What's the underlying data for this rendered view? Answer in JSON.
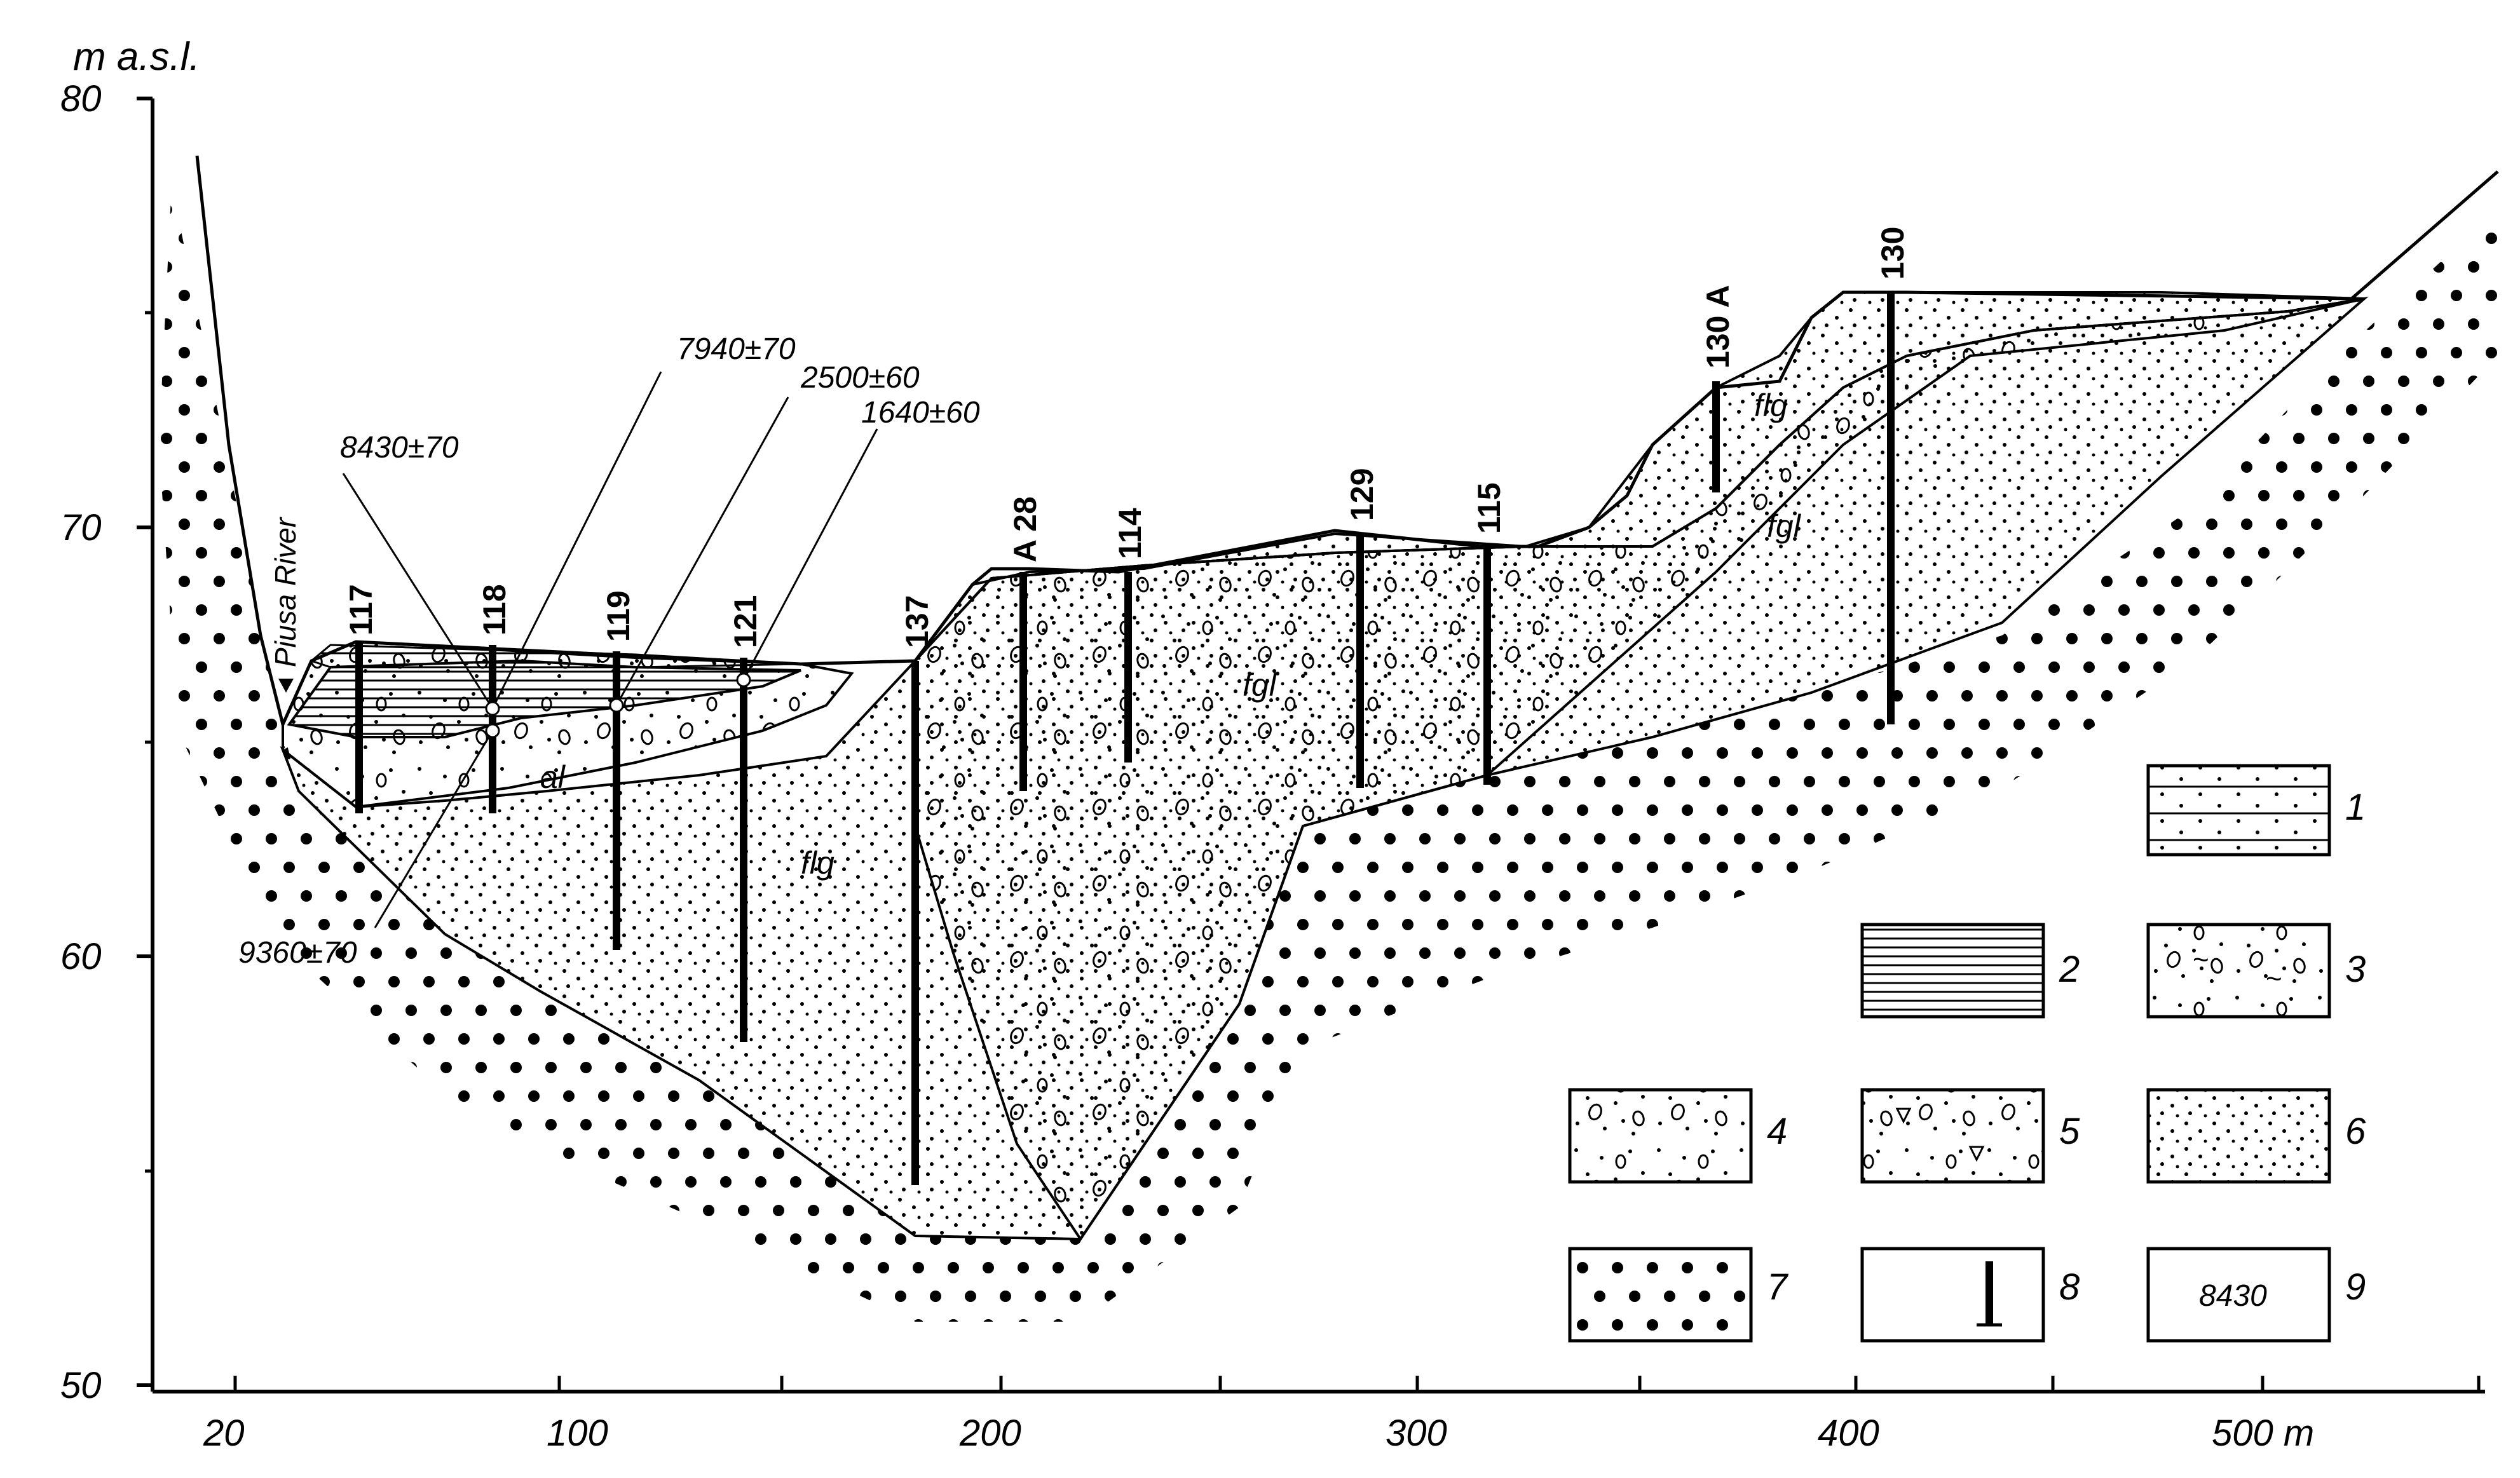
{
  "axes": {
    "y_unit": "m a.s.l.",
    "y_ticks": [
      "80",
      "70",
      "60",
      "50"
    ],
    "x_ticks": [
      "20",
      "100",
      "200",
      "300",
      "400",
      "500 m"
    ]
  },
  "river_label": "Piusa River",
  "boreholes": [
    "117",
    "118",
    "119",
    "121",
    "137",
    "A 28",
    "114",
    "129",
    "115",
    "130 A",
    "130"
  ],
  "dates": [
    "8430±70",
    "7940±70",
    "2500±60",
    "1640±60",
    "9360±70"
  ],
  "unit_labels": {
    "al": "al",
    "flg_main": "flg",
    "fgl_center": "fgl",
    "flg_upper": "flg",
    "fgl_upper": "fgl"
  },
  "legend": [
    {
      "number": "1",
      "pattern": "sand-lines"
    },
    {
      "number": "2",
      "pattern": "dense-lines"
    },
    {
      "number": "3",
      "pattern": "sand-gravel-tilde"
    },
    {
      "number": "4",
      "pattern": "sand-gravel"
    },
    {
      "number": "5",
      "pattern": "sand-gravel-triangles"
    },
    {
      "number": "6",
      "pattern": "sand"
    },
    {
      "number": "7",
      "pattern": "large-dots"
    },
    {
      "number": "8",
      "pattern": "borehole-symbol"
    },
    {
      "number": "9",
      "pattern": "date-text",
      "sample": "8430"
    }
  ]
}
